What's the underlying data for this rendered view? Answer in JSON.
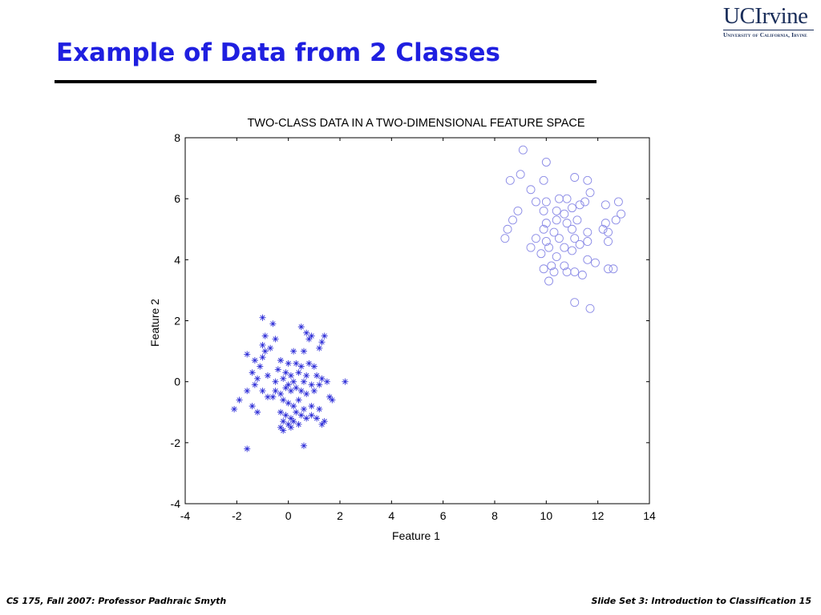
{
  "slide": {
    "title": "Example of Data from 2 Classes",
    "logo": {
      "main": "UCIrvine",
      "sub": "University of California, Irvine"
    },
    "footer_left": "CS 175, Fall 2007: Professor Padhraic Smyth",
    "footer_right": "Slide Set 3: Introduction to Classification 15"
  },
  "chart_data": {
    "type": "scatter",
    "title": "TWO-CLASS DATA IN A TWO-DIMENSIONAL FEATURE SPACE",
    "xlabel": "Feature 1",
    "ylabel": "Feature 2",
    "xlim": [
      -4,
      14
    ],
    "ylim": [
      -4,
      8
    ],
    "xticks": [
      "-4",
      "-2",
      "0",
      "2",
      "4",
      "6",
      "8",
      "10",
      "12",
      "14"
    ],
    "yticks": [
      "8",
      "6",
      "4",
      "2",
      "0",
      "-2",
      "-4"
    ],
    "grid": false,
    "legend": "none",
    "series": [
      {
        "marker": "star",
        "color": "#3030d8",
        "points": [
          [
            -1.0,
            2.1
          ],
          [
            -0.6,
            1.9
          ],
          [
            0.5,
            1.8
          ],
          [
            0.7,
            1.6
          ],
          [
            0.9,
            1.5
          ],
          [
            1.4,
            1.5
          ],
          [
            -0.9,
            1.5
          ],
          [
            -0.5,
            1.4
          ],
          [
            -1.0,
            1.2
          ],
          [
            -0.9,
            1.0
          ],
          [
            -0.7,
            1.1
          ],
          [
            0.2,
            1.0
          ],
          [
            0.6,
            1.0
          ],
          [
            1.2,
            1.1
          ],
          [
            1.3,
            1.3
          ],
          [
            0.8,
            1.4
          ],
          [
            -1.6,
            0.9
          ],
          [
            -1.3,
            0.7
          ],
          [
            -1.1,
            0.5
          ],
          [
            -1.0,
            0.8
          ],
          [
            -0.3,
            0.7
          ],
          [
            0.0,
            0.6
          ],
          [
            0.3,
            0.6
          ],
          [
            0.5,
            0.5
          ],
          [
            0.8,
            0.6
          ],
          [
            1.0,
            0.5
          ],
          [
            -0.4,
            0.4
          ],
          [
            -1.4,
            0.3
          ],
          [
            -1.2,
            0.1
          ],
          [
            -0.8,
            0.2
          ],
          [
            -0.1,
            0.3
          ],
          [
            0.1,
            0.2
          ],
          [
            0.4,
            0.3
          ],
          [
            0.7,
            0.2
          ],
          [
            1.1,
            0.2
          ],
          [
            1.3,
            0.1
          ],
          [
            -0.5,
            0.0
          ],
          [
            -0.2,
            0.1
          ],
          [
            0.0,
            -0.1
          ],
          [
            0.2,
            0.0
          ],
          [
            0.6,
            0.0
          ],
          [
            0.9,
            -0.1
          ],
          [
            1.2,
            -0.1
          ],
          [
            1.5,
            0.0
          ],
          [
            2.2,
            0.0
          ],
          [
            -1.6,
            -0.3
          ],
          [
            -1.3,
            -0.1
          ],
          [
            -1.0,
            -0.3
          ],
          [
            -0.8,
            -0.5
          ],
          [
            -0.5,
            -0.3
          ],
          [
            -0.3,
            -0.4
          ],
          [
            -0.1,
            -0.2
          ],
          [
            0.1,
            -0.3
          ],
          [
            0.3,
            -0.2
          ],
          [
            0.5,
            -0.3
          ],
          [
            0.7,
            -0.4
          ],
          [
            1.0,
            -0.3
          ],
          [
            -2.1,
            -0.9
          ],
          [
            -1.9,
            -0.6
          ],
          [
            -1.4,
            -0.8
          ],
          [
            -1.2,
            -1.0
          ],
          [
            -0.6,
            -0.5
          ],
          [
            -0.2,
            -0.6
          ],
          [
            0.0,
            -0.7
          ],
          [
            0.2,
            -0.8
          ],
          [
            0.4,
            -0.6
          ],
          [
            0.6,
            -0.9
          ],
          [
            0.9,
            -0.8
          ],
          [
            1.2,
            -0.9
          ],
          [
            1.6,
            -0.5
          ],
          [
            1.7,
            -0.6
          ],
          [
            -0.3,
            -1.0
          ],
          [
            -0.1,
            -1.1
          ],
          [
            0.1,
            -1.2
          ],
          [
            0.3,
            -1.0
          ],
          [
            0.5,
            -1.1
          ],
          [
            0.7,
            -1.2
          ],
          [
            0.9,
            -1.1
          ],
          [
            1.1,
            -1.2
          ],
          [
            1.3,
            -1.4
          ],
          [
            1.4,
            -1.3
          ],
          [
            -0.2,
            -1.3
          ],
          [
            0.0,
            -1.4
          ],
          [
            0.2,
            -1.3
          ],
          [
            0.4,
            -1.4
          ],
          [
            -0.3,
            -1.5
          ],
          [
            -0.2,
            -1.6
          ],
          [
            0.1,
            -1.5
          ],
          [
            -1.6,
            -2.2
          ],
          [
            0.6,
            -2.1
          ]
        ]
      },
      {
        "marker": "circle",
        "color": "#8a8ae6",
        "points": [
          [
            9.1,
            7.6
          ],
          [
            10.0,
            7.2
          ],
          [
            9.0,
            6.8
          ],
          [
            8.6,
            6.6
          ],
          [
            9.9,
            6.6
          ],
          [
            11.1,
            6.7
          ],
          [
            11.6,
            6.6
          ],
          [
            9.4,
            6.3
          ],
          [
            11.7,
            6.2
          ],
          [
            9.6,
            5.9
          ],
          [
            10.0,
            5.9
          ],
          [
            10.5,
            6.0
          ],
          [
            10.8,
            6.0
          ],
          [
            8.9,
            5.6
          ],
          [
            9.9,
            5.6
          ],
          [
            10.4,
            5.6
          ],
          [
            10.7,
            5.5
          ],
          [
            11.0,
            5.7
          ],
          [
            11.3,
            5.8
          ],
          [
            11.5,
            5.9
          ],
          [
            12.3,
            5.8
          ],
          [
            12.8,
            5.9
          ],
          [
            12.9,
            5.5
          ],
          [
            8.7,
            5.3
          ],
          [
            10.0,
            5.2
          ],
          [
            10.4,
            5.3
          ],
          [
            10.8,
            5.2
          ],
          [
            11.2,
            5.3
          ],
          [
            12.3,
            5.2
          ],
          [
            12.7,
            5.3
          ],
          [
            8.5,
            5.0
          ],
          [
            9.9,
            5.0
          ],
          [
            10.3,
            4.9
          ],
          [
            11.0,
            5.0
          ],
          [
            11.6,
            4.9
          ],
          [
            12.2,
            5.0
          ],
          [
            12.4,
            4.9
          ],
          [
            8.4,
            4.7
          ],
          [
            9.6,
            4.7
          ],
          [
            10.0,
            4.6
          ],
          [
            10.5,
            4.7
          ],
          [
            11.1,
            4.7
          ],
          [
            11.6,
            4.6
          ],
          [
            12.4,
            4.6
          ],
          [
            9.4,
            4.4
          ],
          [
            10.1,
            4.4
          ],
          [
            10.7,
            4.4
          ],
          [
            11.3,
            4.5
          ],
          [
            9.8,
            4.2
          ],
          [
            10.4,
            4.1
          ],
          [
            11.0,
            4.3
          ],
          [
            11.6,
            4.0
          ],
          [
            11.9,
            3.9
          ],
          [
            10.2,
            3.8
          ],
          [
            10.7,
            3.8
          ],
          [
            9.9,
            3.7
          ],
          [
            10.3,
            3.6
          ],
          [
            10.8,
            3.6
          ],
          [
            11.1,
            3.6
          ],
          [
            12.4,
            3.7
          ],
          [
            12.6,
            3.7
          ],
          [
            11.4,
            3.5
          ],
          [
            10.1,
            3.3
          ],
          [
            11.1,
            2.6
          ],
          [
            11.7,
            2.4
          ]
        ]
      }
    ]
  }
}
